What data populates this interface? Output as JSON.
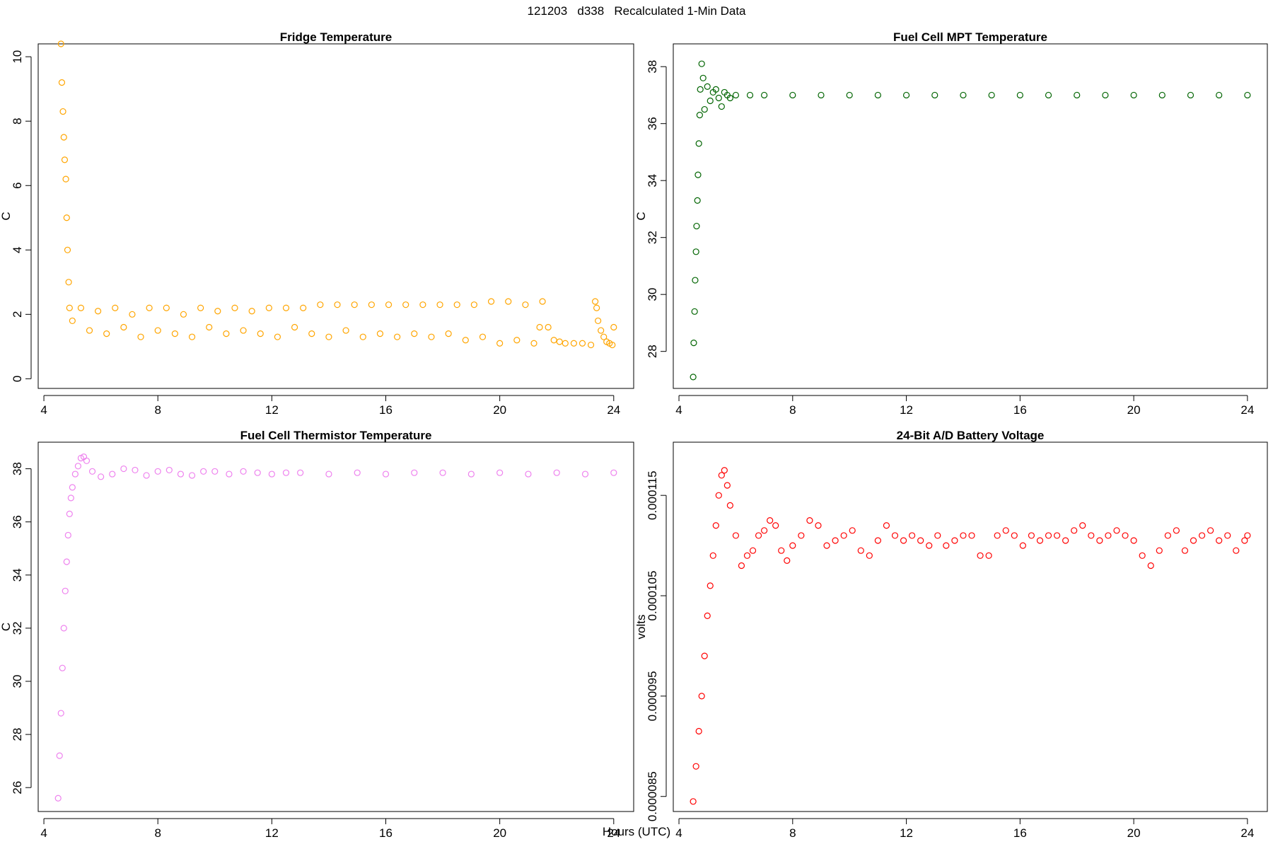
{
  "figure": {
    "title": "121203   d338   Recalculated 1-Min Data",
    "xlabel": "Hours (UTC)"
  },
  "chart_data": [
    {
      "type": "scatter",
      "title": "Fridge Temperature",
      "xlabel": "",
      "ylabel": "C",
      "xlim": [
        3.8,
        24.7
      ],
      "ylim": [
        -0.3,
        10.4
      ],
      "xticks": [
        4,
        8,
        12,
        16,
        20,
        24
      ],
      "yticks": [
        0,
        2,
        4,
        6,
        8,
        10
      ],
      "ytick_labels": [
        "0",
        "2",
        "4",
        "6",
        "8",
        "10"
      ],
      "color": "#FFA500",
      "x": [
        4.6,
        4.63,
        4.67,
        4.7,
        4.73,
        4.77,
        4.8,
        4.83,
        4.87,
        4.9,
        5.0,
        5.3,
        5.6,
        5.9,
        6.2,
        6.5,
        6.8,
        7.1,
        7.4,
        7.7,
        8.0,
        8.3,
        8.6,
        8.9,
        9.2,
        9.5,
        9.8,
        10.1,
        10.4,
        10.7,
        11.0,
        11.3,
        11.6,
        11.9,
        12.2,
        12.5,
        12.8,
        13.1,
        13.4,
        13.7,
        14.0,
        14.3,
        14.6,
        14.9,
        15.2,
        15.5,
        15.8,
        16.1,
        16.4,
        16.7,
        17.0,
        17.3,
        17.6,
        17.9,
        18.2,
        18.5,
        18.8,
        19.1,
        19.4,
        19.7,
        20.0,
        20.3,
        20.6,
        20.9,
        21.2,
        21.4,
        21.5,
        21.7,
        21.9,
        22.1,
        22.3,
        22.6,
        22.9,
        23.2,
        23.35,
        23.4,
        23.45,
        23.55,
        23.65,
        23.75,
        23.85,
        23.95,
        24.0
      ],
      "y": [
        10.4,
        9.2,
        8.3,
        7.5,
        6.8,
        6.2,
        5.0,
        4.0,
        3.0,
        2.2,
        1.8,
        2.2,
        1.5,
        2.1,
        1.4,
        2.2,
        1.6,
        2.0,
        1.3,
        2.2,
        1.5,
        2.2,
        1.4,
        2.0,
        1.3,
        2.2,
        1.6,
        2.1,
        1.4,
        2.2,
        1.5,
        2.1,
        1.4,
        2.2,
        1.3,
        2.2,
        1.6,
        2.2,
        1.4,
        2.3,
        1.3,
        2.3,
        1.5,
        2.3,
        1.3,
        2.3,
        1.4,
        2.3,
        1.3,
        2.3,
        1.4,
        2.3,
        1.3,
        2.3,
        1.4,
        2.3,
        1.2,
        2.3,
        1.3,
        2.4,
        1.1,
        2.4,
        1.2,
        2.3,
        1.1,
        1.6,
        2.4,
        1.6,
        1.2,
        1.15,
        1.1,
        1.1,
        1.1,
        1.05,
        2.4,
        2.2,
        1.8,
        1.5,
        1.3,
        1.15,
        1.1,
        1.05,
        1.6
      ]
    },
    {
      "type": "scatter",
      "title": "Fuel Cell MPT Temperature",
      "xlabel": "",
      "ylabel": "C",
      "xlim": [
        3.8,
        24.7
      ],
      "ylim": [
        26.7,
        38.8
      ],
      "xticks": [
        4,
        8,
        12,
        16,
        20,
        24
      ],
      "yticks": [
        28,
        30,
        32,
        34,
        36,
        38
      ],
      "ytick_labels": [
        "28",
        "30",
        "32",
        "34",
        "36",
        "38"
      ],
      "color": "#006400",
      "x": [
        4.5,
        4.52,
        4.55,
        4.57,
        4.6,
        4.62,
        4.65,
        4.67,
        4.7,
        4.73,
        4.75,
        4.8,
        4.85,
        4.9,
        5.0,
        5.1,
        5.2,
        5.3,
        5.4,
        5.5,
        5.6,
        5.7,
        5.8,
        6.0,
        6.5,
        7.0,
        8.0,
        9.0,
        10.0,
        11.0,
        12.0,
        13.0,
        14.0,
        15.0,
        16.0,
        17.0,
        18.0,
        19.0,
        20.0,
        21.0,
        22.0,
        23.0,
        24.0
      ],
      "y": [
        27.1,
        28.3,
        29.4,
        30.5,
        31.5,
        32.4,
        33.3,
        34.2,
        35.3,
        36.3,
        37.2,
        38.1,
        37.6,
        36.5,
        37.3,
        36.8,
        37.1,
        37.2,
        36.9,
        36.6,
        37.1,
        37.0,
        36.9,
        37.0,
        37.0,
        37.0,
        37.0,
        37.0,
        37.0,
        37.0,
        37.0,
        37.0,
        37.0,
        37.0,
        37.0,
        37.0,
        37.0,
        37.0,
        37.0,
        37.0,
        37.0,
        37.0,
        37.0
      ]
    },
    {
      "type": "scatter",
      "title": "Fuel Cell Thermistor Temperature",
      "xlabel": "",
      "ylabel": "C",
      "xlim": [
        3.8,
        24.7
      ],
      "ylim": [
        25.1,
        39.0
      ],
      "xticks": [
        4,
        8,
        12,
        16,
        20,
        24
      ],
      "yticks": [
        26,
        28,
        30,
        32,
        34,
        36,
        38
      ],
      "ytick_labels": [
        "26",
        "28",
        "30",
        "32",
        "34",
        "36",
        "38"
      ],
      "color": "#EE82EE",
      "x": [
        4.5,
        4.55,
        4.6,
        4.65,
        4.7,
        4.75,
        4.8,
        4.85,
        4.9,
        4.95,
        5.0,
        5.1,
        5.2,
        5.3,
        5.4,
        5.5,
        5.7,
        6.0,
        6.4,
        6.8,
        7.2,
        7.6,
        8.0,
        8.4,
        8.8,
        9.2,
        9.6,
        10.0,
        10.5,
        11.0,
        11.5,
        12.0,
        12.5,
        13.0,
        14.0,
        15.0,
        16.0,
        17.0,
        18.0,
        19.0,
        20.0,
        21.0,
        22.0,
        23.0,
        24.0
      ],
      "y": [
        25.6,
        27.2,
        28.8,
        30.5,
        32.0,
        33.4,
        34.5,
        35.5,
        36.3,
        36.9,
        37.3,
        37.8,
        38.1,
        38.4,
        38.45,
        38.3,
        37.9,
        37.7,
        37.8,
        38.0,
        37.95,
        37.75,
        37.9,
        37.95,
        37.8,
        37.75,
        37.9,
        37.9,
        37.8,
        37.9,
        37.85,
        37.8,
        37.85,
        37.85,
        37.8,
        37.85,
        37.8,
        37.85,
        37.85,
        37.8,
        37.85,
        37.8,
        37.85,
        37.8,
        37.85
      ]
    },
    {
      "type": "scatter",
      "title": "24-Bit A/D Battery Voltage",
      "xlabel": "",
      "ylabel": "volts",
      "xlim": [
        3.8,
        24.7
      ],
      "ylim": [
        8.35e-05,
        0.0001203
      ],
      "xticks": [
        4,
        8,
        12,
        16,
        20,
        24
      ],
      "yticks": [
        8.5e-05,
        9.5e-05,
        0.000105,
        0.000115
      ],
      "ytick_labels": [
        "0.000085",
        "0.000095",
        "0.000105",
        "0.000115"
      ],
      "color": "#FF0000",
      "x": [
        4.5,
        4.6,
        4.7,
        4.8,
        4.9,
        5.0,
        5.1,
        5.2,
        5.3,
        5.4,
        5.5,
        5.6,
        5.7,
        5.8,
        6.0,
        6.2,
        6.4,
        6.6,
        6.8,
        7.0,
        7.2,
        7.4,
        7.6,
        7.8,
        8.0,
        8.3,
        8.6,
        8.9,
        9.2,
        9.5,
        9.8,
        10.1,
        10.4,
        10.7,
        11.0,
        11.3,
        11.6,
        11.9,
        12.2,
        12.5,
        12.8,
        13.1,
        13.4,
        13.7,
        14.0,
        14.3,
        14.6,
        14.9,
        15.2,
        15.5,
        15.8,
        16.1,
        16.4,
        16.7,
        17.0,
        17.3,
        17.6,
        17.9,
        18.2,
        18.5,
        18.8,
        19.1,
        19.4,
        19.7,
        20.0,
        20.3,
        20.6,
        20.9,
        21.2,
        21.5,
        21.8,
        22.1,
        22.4,
        22.7,
        23.0,
        23.3,
        23.6,
        23.9,
        24.0
      ],
      "y": [
        8.45e-05,
        8.8e-05,
        9.15e-05,
        9.5e-05,
        9.9e-05,
        0.000103,
        0.000106,
        0.000109,
        0.000112,
        0.000115,
        0.000117,
        0.0001175,
        0.000116,
        0.000114,
        0.000111,
        0.000108,
        0.000109,
        0.0001095,
        0.000111,
        0.0001115,
        0.0001125,
        0.000112,
        0.0001095,
        0.0001085,
        0.00011,
        0.000111,
        0.0001125,
        0.000112,
        0.00011,
        0.0001105,
        0.000111,
        0.0001115,
        0.0001095,
        0.000109,
        0.0001105,
        0.000112,
        0.000111,
        0.0001105,
        0.000111,
        0.0001105,
        0.00011,
        0.000111,
        0.00011,
        0.0001105,
        0.000111,
        0.000111,
        0.000109,
        0.000109,
        0.000111,
        0.0001115,
        0.000111,
        0.00011,
        0.000111,
        0.0001105,
        0.000111,
        0.000111,
        0.0001105,
        0.0001115,
        0.000112,
        0.000111,
        0.0001105,
        0.000111,
        0.0001115,
        0.000111,
        0.0001105,
        0.000109,
        0.000108,
        0.0001095,
        0.000111,
        0.0001115,
        0.0001095,
        0.0001105,
        0.000111,
        0.0001115,
        0.0001105,
        0.000111,
        0.0001095,
        0.0001105,
        0.000111
      ]
    }
  ]
}
